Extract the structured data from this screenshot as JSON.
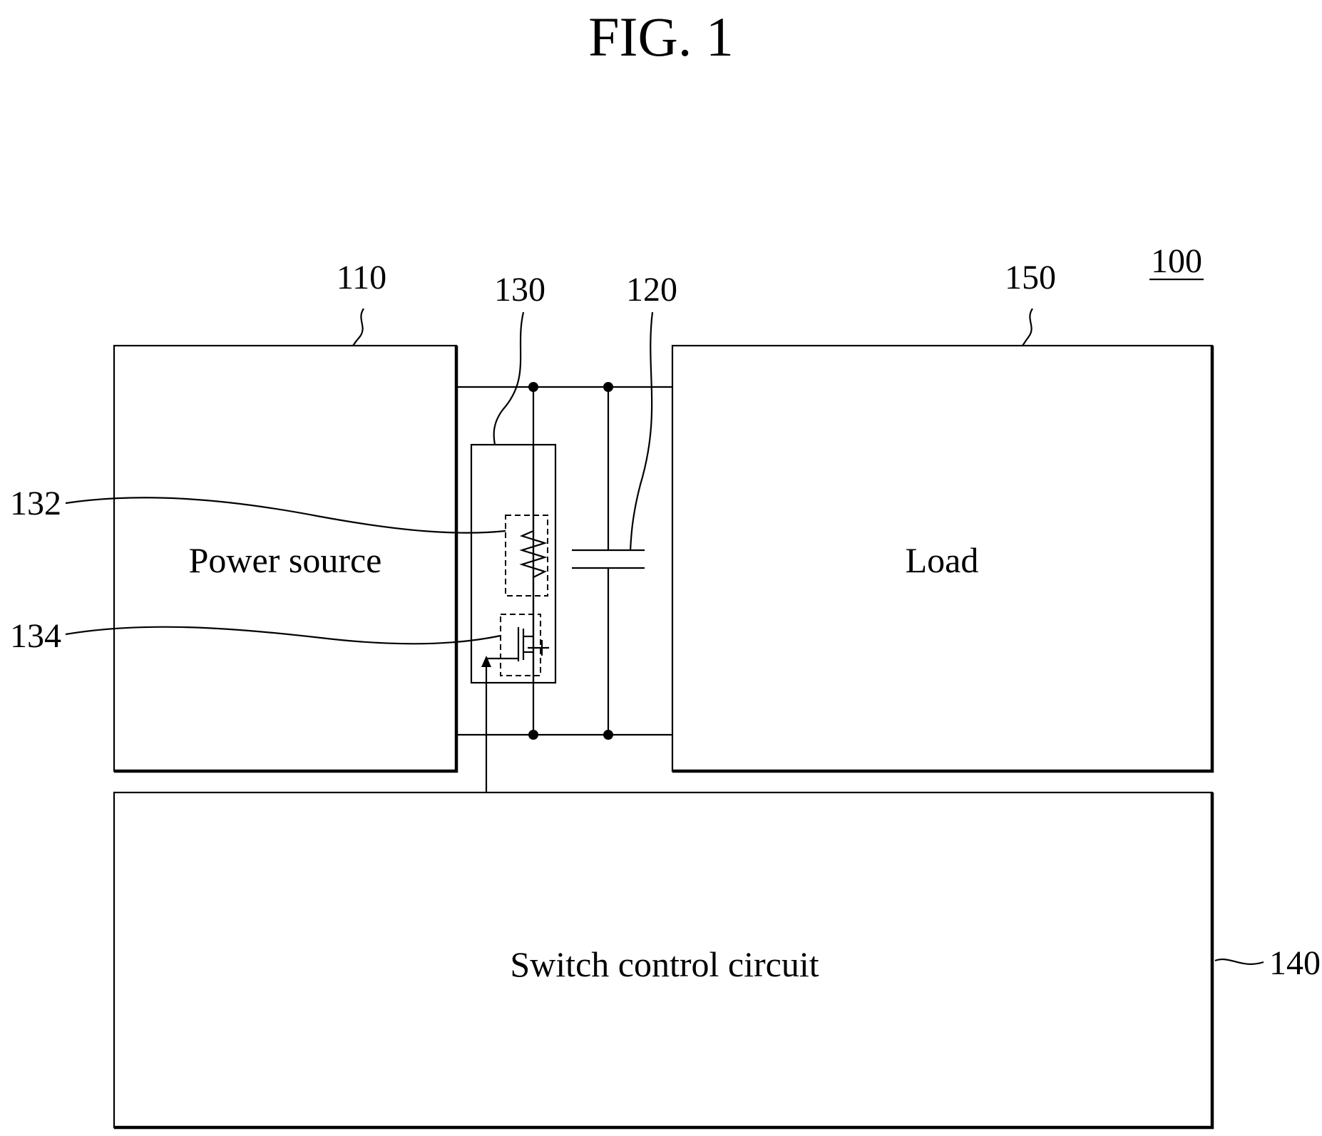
{
  "figure": {
    "title": "FIG. 1"
  },
  "references": {
    "system": "100",
    "power_source": "110",
    "capacitor": "120",
    "precharge_unit": "130",
    "resistor": "132",
    "switch": "134",
    "switch_control": "140",
    "load": "150"
  },
  "blocks": {
    "power_source": "Power source",
    "load": "Load",
    "switch_control": "Switch control circuit"
  }
}
